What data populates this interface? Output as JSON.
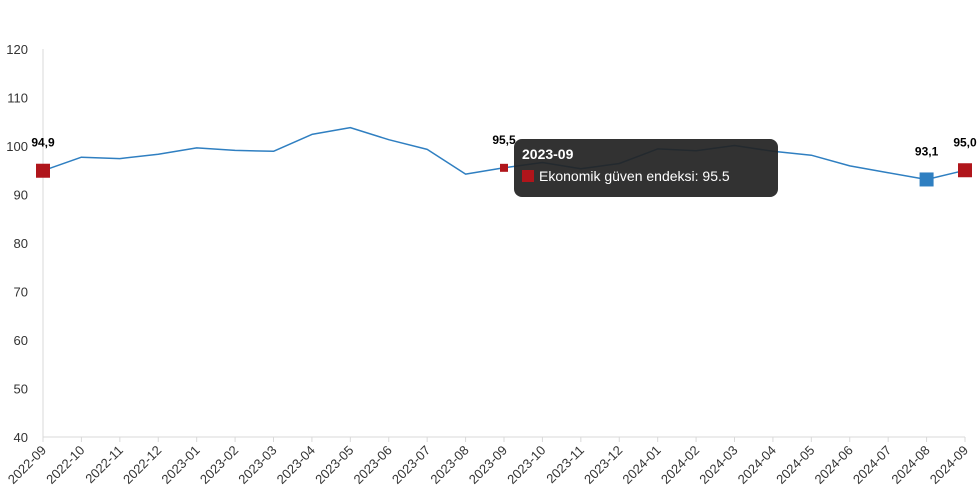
{
  "chart_data": {
    "type": "line",
    "title": "",
    "xlabel": "",
    "ylabel": "",
    "ylim": [
      40,
      120
    ],
    "yticks": [
      40,
      50,
      60,
      70,
      80,
      90,
      100,
      110,
      120
    ],
    "grid": false,
    "categories": [
      "2022-09",
      "2022-10",
      "2022-11",
      "2022-12",
      "2023-01",
      "2023-02",
      "2023-03",
      "2023-04",
      "2023-05",
      "2023-06",
      "2023-07",
      "2023-08",
      "2023-09",
      "2023-10",
      "2023-11",
      "2023-12",
      "2024-01",
      "2024-02",
      "2024-03",
      "2024-04",
      "2024-05",
      "2024-06",
      "2024-07",
      "2024-08",
      "2024-09"
    ],
    "series": [
      {
        "name": "Ekonomik güven endeksi",
        "color": "#2f7fc1",
        "values": [
          94.9,
          97.7,
          97.4,
          98.3,
          99.6,
          99.1,
          98.9,
          102.4,
          103.8,
          101.3,
          99.3,
          94.2,
          95.5,
          96.6,
          95.3,
          96.4,
          99.4,
          99.0,
          100.1,
          98.9,
          98.1,
          95.9,
          94.5,
          93.1,
          95.0
        ]
      }
    ],
    "highlights": [
      {
        "index": 0,
        "label": "94,9",
        "color": "#b0151b"
      },
      {
        "index": 12,
        "label": "95,5",
        "color": "#b0151b"
      },
      {
        "index": 23,
        "label": "93,1",
        "color": "#2f7fc1"
      },
      {
        "index": 24,
        "label": "95,0",
        "color": "#b0151b"
      }
    ]
  },
  "tooltip": {
    "title": "2023-09",
    "label": "Ekonomik güven endeksi: 95.5",
    "swatch_color": "#b0151b"
  }
}
